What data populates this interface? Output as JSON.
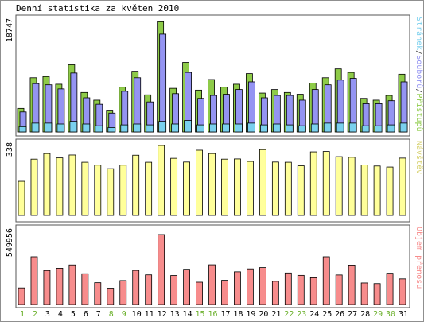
{
  "title": "Denní statistika za květen 2010",
  "colors": {
    "pristupu": "#8ecb48",
    "souboru": "#9494f2",
    "stranek": "#7ad0ee",
    "navstev": "#ffff9a",
    "prenos": "#f78c8c",
    "weekend": "#6bb02b",
    "weekday": "#000000",
    "border": "#555555"
  },
  "chart_data": [
    {
      "type": "bar",
      "name": "Přístupů / Souborů / Stránek",
      "categories": [
        "1",
        "2",
        "3",
        "4",
        "5",
        "6",
        "7",
        "8",
        "9",
        "10",
        "11",
        "12",
        "13",
        "14",
        "15",
        "16",
        "17",
        "18",
        "19",
        "20",
        "21",
        "22",
        "23",
        "24",
        "25",
        "26",
        "27",
        "28",
        "29",
        "30",
        "31"
      ],
      "ymax_label": "18747",
      "ylim": [
        0,
        18747
      ],
      "series": [
        {
          "name": "Přístupů",
          "values": [
            4000,
            9200,
            9400,
            8100,
            11400,
            6700,
            5400,
            3700,
            7600,
            10300,
            6300,
            18700,
            7400,
            11800,
            7100,
            8900,
            7600,
            8100,
            9900,
            6600,
            7200,
            6700,
            6400,
            8300,
            9200,
            10700,
            10100,
            5700,
            5400,
            6200,
            9800
          ]
        },
        {
          "name": "Souborů",
          "values": [
            3400,
            8200,
            8000,
            7300,
            10000,
            5800,
            4700,
            3200,
            6900,
            9200,
            5100,
            16600,
            6500,
            10100,
            5700,
            6200,
            6400,
            7200,
            8500,
            5800,
            6200,
            6200,
            5400,
            7200,
            8000,
            8800,
            9100,
            4800,
            4800,
            5300,
            8500
          ]
        },
        {
          "name": "Stránek",
          "values": [
            600,
            1000,
            1000,
            900,
            1200,
            900,
            700,
            500,
            800,
            900,
            800,
            1200,
            900,
            1300,
            800,
            900,
            900,
            900,
            1000,
            800,
            900,
            800,
            700,
            900,
            1000,
            1000,
            1000,
            700,
            700,
            800,
            1000
          ]
        }
      ],
      "legend": "Stránek/Souborů/Přístupů"
    },
    {
      "type": "bar",
      "name": "Návštěv",
      "categories": [
        "1",
        "2",
        "3",
        "4",
        "5",
        "6",
        "7",
        "8",
        "9",
        "10",
        "11",
        "12",
        "13",
        "14",
        "15",
        "16",
        "17",
        "18",
        "19",
        "20",
        "21",
        "22",
        "23",
        "24",
        "25",
        "26",
        "27",
        "28",
        "29",
        "30",
        "31"
      ],
      "ymax_label": "338",
      "ylim": [
        0,
        338
      ],
      "series": [
        {
          "name": "Návštěv",
          "values": [
            165,
            272,
            299,
            278,
            292,
            257,
            243,
            226,
            243,
            291,
            257,
            338,
            276,
            258,
            315,
            299,
            272,
            273,
            261,
            318,
            258,
            257,
            240,
            307,
            309,
            284,
            281,
            244,
            239,
            234,
            277
          ]
        }
      ],
      "legend": "Návštěv"
    },
    {
      "type": "bar",
      "name": "Objem přenosu",
      "categories": [
        "1",
        "2",
        "3",
        "4",
        "5",
        "6",
        "7",
        "8",
        "9",
        "10",
        "11",
        "12",
        "13",
        "14",
        "15",
        "16",
        "17",
        "18",
        "19",
        "20",
        "21",
        "22",
        "23",
        "24",
        "25",
        "26",
        "27",
        "28",
        "29",
        "30",
        "31"
      ],
      "ymax_label": "549956",
      "ylim": [
        0,
        549956
      ],
      "series": [
        {
          "name": "Objem přenosu",
          "values": [
            130000,
            375000,
            267000,
            285000,
            311000,
            242000,
            171000,
            128000,
            188000,
            268000,
            233000,
            549956,
            228000,
            277000,
            175000,
            312000,
            190000,
            257000,
            280000,
            290000,
            182000,
            248000,
            229000,
            210000,
            375000,
            232000,
            310000,
            169000,
            164000,
            246000,
            201000
          ]
        }
      ],
      "legend": "Objem přenosu"
    }
  ]
}
